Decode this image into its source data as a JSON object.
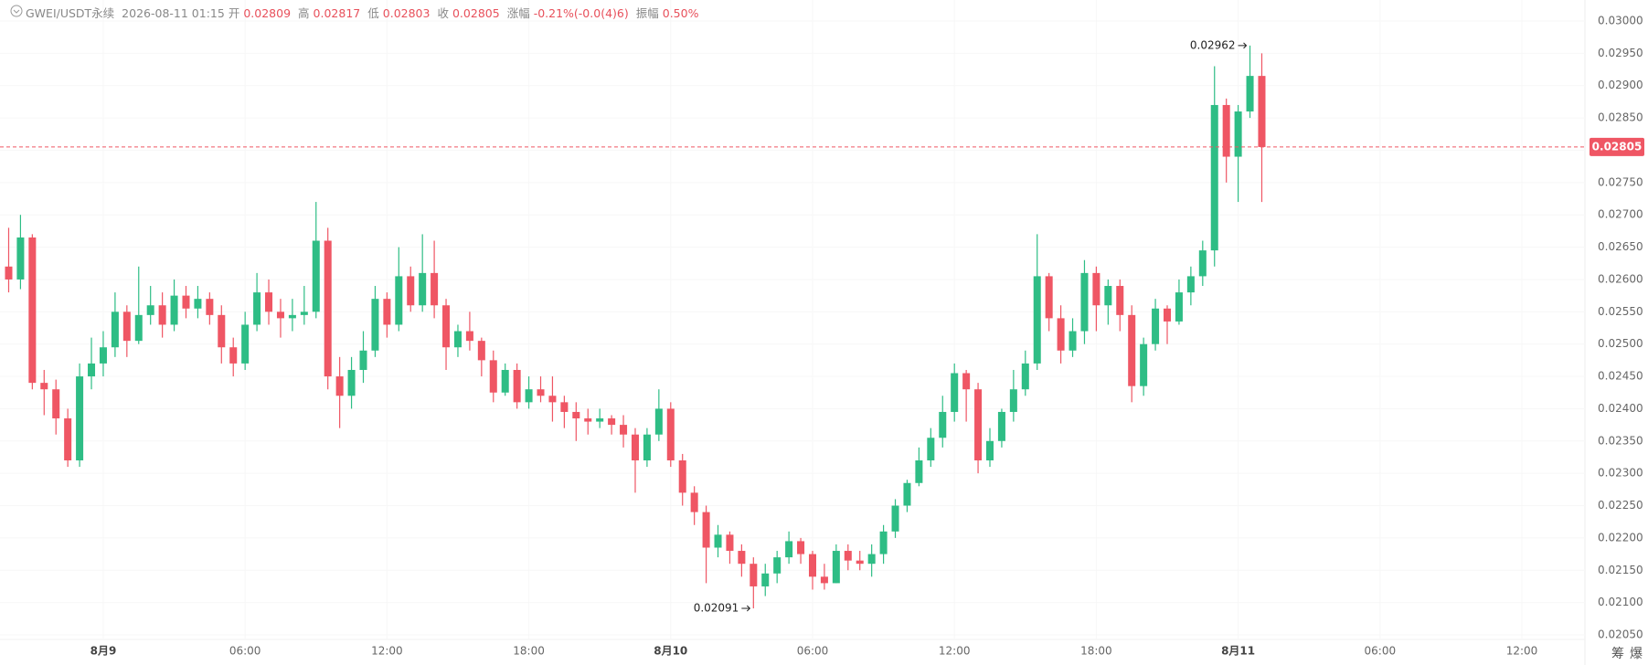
{
  "chart_data": {
    "type": "candlestick",
    "title": "GWEI/USDT永续",
    "info": [
      {
        "label": "2026-08-11 01:15"
      },
      {
        "label": "开",
        "value": "0.02809"
      },
      {
        "label": "高",
        "value": "0.02817"
      },
      {
        "label": "低",
        "value": "0.02803"
      },
      {
        "label": "收",
        "value": "0.02805"
      },
      {
        "label": "涨幅",
        "value": "-0.21%(-0.0(4)6)"
      },
      {
        "label": "振幅",
        "value": "0.50%"
      }
    ],
    "tools": [
      "筹",
      "爆"
    ],
    "up_color": "#2ebd85",
    "down_color": "#ef5664",
    "grid": true,
    "x": [
      "8月8 20:00",
      "8月8 20:30",
      "8月8 21:00",
      "8月8 21:30",
      "8月8 22:00",
      "8月8 22:30",
      "8月8 23:00",
      "8月8 23:30",
      "8月9 00:00",
      "8月9 00:30",
      "8月9 01:00",
      "8月9 01:30",
      "8月9 02:00",
      "8月9 02:30",
      "8月9 03:00",
      "8月9 03:30",
      "8月9 04:00",
      "8月9 04:30",
      "8月9 05:00",
      "8月9 05:30",
      "8月9 06:00",
      "8月9 06:30",
      "8月9 07:00",
      "8月9 07:30",
      "8月9 08:00",
      "8月9 08:30",
      "8月9 09:00",
      "8月9 09:30",
      "8月9 10:00",
      "8月9 10:30",
      "8月9 11:00",
      "8月9 11:30",
      "8月9 12:00",
      "8月9 12:30",
      "8月9 13:00",
      "8月9 13:30",
      "8月9 14:00",
      "8月9 14:30",
      "8月9 15:00",
      "8月9 15:30",
      "8月9 16:00",
      "8月9 16:30",
      "8月9 17:00",
      "8月9 17:30",
      "8月9 18:00",
      "8月9 18:30",
      "8月9 19:00",
      "8月9 19:30",
      "8月9 20:00",
      "8月9 20:30",
      "8月9 21:00",
      "8月9 21:30",
      "8月9 22:00",
      "8月9 22:30",
      "8月9 23:00",
      "8月9 23:30",
      "8月10 00:00",
      "8月10 00:30",
      "8月10 01:00",
      "8月10 01:30",
      "8月10 02:00",
      "8月10 02:30",
      "8月10 03:00",
      "8月10 03:30",
      "8月10 04:00",
      "8月10 04:30",
      "8月10 05:00",
      "8月10 05:30",
      "8月10 06:00",
      "8月10 06:30",
      "8月10 07:00",
      "8月10 07:30",
      "8月10 08:00",
      "8月10 08:30",
      "8月10 09:00",
      "8月10 09:30",
      "8月10 10:00",
      "8月10 10:30",
      "8月10 11:00",
      "8月10 11:30",
      "8月10 12:00",
      "8月10 12:30",
      "8月10 13:00",
      "8月10 13:30",
      "8月10 14:00",
      "8月10 14:30",
      "8月10 15:00",
      "8月10 15:30",
      "8月10 16:00",
      "8月10 16:30",
      "8月10 17:00",
      "8月10 17:30",
      "8月10 18:00",
      "8月10 18:30",
      "8月10 19:00",
      "8月10 19:30",
      "8月10 20:00",
      "8月10 20:30",
      "8月10 21:00",
      "8月10 21:30",
      "8月10 22:00",
      "8月10 22:30",
      "8月10 23:00",
      "8月10 23:30",
      "8月11 00:00",
      "8月11 00:30",
      "8月11 01:00"
    ],
    "candles": [
      [
        0.0262,
        0.0268,
        0.0258,
        0.026
      ],
      [
        0.026,
        0.027,
        0.02585,
        0.02665
      ],
      [
        0.02665,
        0.0267,
        0.0243,
        0.0244
      ],
      [
        0.0244,
        0.0246,
        0.0239,
        0.0243
      ],
      [
        0.0243,
        0.02445,
        0.0236,
        0.02385
      ],
      [
        0.02385,
        0.024,
        0.0231,
        0.0232
      ],
      [
        0.0232,
        0.0247,
        0.0231,
        0.0245
      ],
      [
        0.0245,
        0.0251,
        0.0243,
        0.0247
      ],
      [
        0.0247,
        0.0252,
        0.0245,
        0.02495
      ],
      [
        0.02495,
        0.0258,
        0.0248,
        0.0255
      ],
      [
        0.0255,
        0.0256,
        0.0248,
        0.02505
      ],
      [
        0.02505,
        0.0262,
        0.025,
        0.02545
      ],
      [
        0.02545,
        0.0259,
        0.0253,
        0.0256
      ],
      [
        0.0256,
        0.0258,
        0.0251,
        0.0253
      ],
      [
        0.0253,
        0.026,
        0.0252,
        0.02575
      ],
      [
        0.02575,
        0.0259,
        0.0254,
        0.02555
      ],
      [
        0.02555,
        0.0259,
        0.0254,
        0.0257
      ],
      [
        0.0257,
        0.0258,
        0.0253,
        0.02545
      ],
      [
        0.02545,
        0.0256,
        0.0247,
        0.02495
      ],
      [
        0.02495,
        0.0251,
        0.0245,
        0.0247
      ],
      [
        0.0247,
        0.0255,
        0.0246,
        0.0253
      ],
      [
        0.0253,
        0.0261,
        0.0252,
        0.0258
      ],
      [
        0.0258,
        0.026,
        0.0253,
        0.0255
      ],
      [
        0.0255,
        0.0257,
        0.0251,
        0.0254
      ],
      [
        0.0254,
        0.0257,
        0.0252,
        0.02545
      ],
      [
        0.02545,
        0.0259,
        0.0253,
        0.0255
      ],
      [
        0.0255,
        0.0272,
        0.0254,
        0.0266
      ],
      [
        0.0266,
        0.0268,
        0.0243,
        0.0245
      ],
      [
        0.0245,
        0.0248,
        0.0237,
        0.0242
      ],
      [
        0.0242,
        0.0248,
        0.024,
        0.0246
      ],
      [
        0.0246,
        0.0252,
        0.0244,
        0.0249
      ],
      [
        0.0249,
        0.0259,
        0.0248,
        0.0257
      ],
      [
        0.0257,
        0.0258,
        0.0251,
        0.0253
      ],
      [
        0.0253,
        0.0265,
        0.0252,
        0.02605
      ],
      [
        0.02605,
        0.0262,
        0.0255,
        0.0256
      ],
      [
        0.0256,
        0.0267,
        0.0255,
        0.0261
      ],
      [
        0.0261,
        0.0266,
        0.0254,
        0.0256
      ],
      [
        0.0256,
        0.0257,
        0.0246,
        0.02495
      ],
      [
        0.02495,
        0.0253,
        0.0248,
        0.0252
      ],
      [
        0.0252,
        0.0255,
        0.0249,
        0.02505
      ],
      [
        0.02505,
        0.0251,
        0.0245,
        0.02475
      ],
      [
        0.02475,
        0.0249,
        0.0241,
        0.02425
      ],
      [
        0.02425,
        0.0247,
        0.0242,
        0.0246
      ],
      [
        0.0246,
        0.0247,
        0.024,
        0.0241
      ],
      [
        0.0241,
        0.0245,
        0.024,
        0.0243
      ],
      [
        0.0243,
        0.0245,
        0.0241,
        0.0242
      ],
      [
        0.0242,
        0.0245,
        0.0238,
        0.0241
      ],
      [
        0.0241,
        0.0242,
        0.0237,
        0.02395
      ],
      [
        0.02395,
        0.0241,
        0.0235,
        0.02385
      ],
      [
        0.02385,
        0.024,
        0.0236,
        0.0238
      ],
      [
        0.0238,
        0.024,
        0.0237,
        0.02385
      ],
      [
        0.02385,
        0.0239,
        0.0236,
        0.02375
      ],
      [
        0.02375,
        0.0239,
        0.0234,
        0.0236
      ],
      [
        0.0236,
        0.0237,
        0.0227,
        0.0232
      ],
      [
        0.0232,
        0.0237,
        0.0231,
        0.0236
      ],
      [
        0.0236,
        0.0243,
        0.0235,
        0.024
      ],
      [
        0.024,
        0.0241,
        0.0231,
        0.0232
      ],
      [
        0.0232,
        0.0233,
        0.0225,
        0.0227
      ],
      [
        0.0227,
        0.0228,
        0.0222,
        0.0224
      ],
      [
        0.0224,
        0.0225,
        0.0213,
        0.02185
      ],
      [
        0.02185,
        0.0222,
        0.0217,
        0.02205
      ],
      [
        0.02205,
        0.0221,
        0.0216,
        0.0218
      ],
      [
        0.0218,
        0.0219,
        0.0214,
        0.0216
      ],
      [
        0.0216,
        0.0217,
        0.02091,
        0.02125
      ],
      [
        0.02125,
        0.0216,
        0.0211,
        0.02145
      ],
      [
        0.02145,
        0.0218,
        0.0213,
        0.0217
      ],
      [
        0.0217,
        0.0221,
        0.0216,
        0.02195
      ],
      [
        0.02195,
        0.022,
        0.0216,
        0.02175
      ],
      [
        0.02175,
        0.0218,
        0.0212,
        0.0214
      ],
      [
        0.0214,
        0.0216,
        0.0212,
        0.0213
      ],
      [
        0.0213,
        0.0219,
        0.0213,
        0.0218
      ],
      [
        0.0218,
        0.0219,
        0.0215,
        0.02165
      ],
      [
        0.02165,
        0.0218,
        0.0215,
        0.0216
      ],
      [
        0.0216,
        0.0219,
        0.0214,
        0.02175
      ],
      [
        0.02175,
        0.0222,
        0.0216,
        0.0221
      ],
      [
        0.0221,
        0.0226,
        0.022,
        0.0225
      ],
      [
        0.0225,
        0.0229,
        0.0224,
        0.02285
      ],
      [
        0.02285,
        0.0234,
        0.0228,
        0.0232
      ],
      [
        0.0232,
        0.0237,
        0.0231,
        0.02355
      ],
      [
        0.02355,
        0.0242,
        0.0234,
        0.02395
      ],
      [
        0.02395,
        0.0247,
        0.0238,
        0.02455
      ],
      [
        0.02455,
        0.0246,
        0.0238,
        0.0243
      ],
      [
        0.0243,
        0.0244,
        0.023,
        0.0232
      ],
      [
        0.0232,
        0.0237,
        0.0231,
        0.0235
      ],
      [
        0.0235,
        0.024,
        0.0234,
        0.02395
      ],
      [
        0.02395,
        0.0246,
        0.0238,
        0.0243
      ],
      [
        0.0243,
        0.0249,
        0.0242,
        0.0247
      ],
      [
        0.0247,
        0.0267,
        0.0246,
        0.02605
      ],
      [
        0.02605,
        0.0261,
        0.0252,
        0.0254
      ],
      [
        0.0254,
        0.0256,
        0.0247,
        0.0249
      ],
      [
        0.0249,
        0.0254,
        0.0248,
        0.0252
      ],
      [
        0.0252,
        0.0263,
        0.025,
        0.0261
      ],
      [
        0.0261,
        0.0262,
        0.0252,
        0.0256
      ],
      [
        0.0256,
        0.026,
        0.0253,
        0.0259
      ],
      [
        0.0259,
        0.026,
        0.0252,
        0.02545
      ],
      [
        0.02545,
        0.0256,
        0.0241,
        0.02435
      ],
      [
        0.02435,
        0.0251,
        0.0242,
        0.025
      ],
      [
        0.025,
        0.0257,
        0.0249,
        0.02555
      ],
      [
        0.02555,
        0.0256,
        0.025,
        0.02535
      ],
      [
        0.02535,
        0.026,
        0.0253,
        0.0258
      ],
      [
        0.0258,
        0.0262,
        0.0256,
        0.02605
      ],
      [
        0.02605,
        0.0266,
        0.0259,
        0.02645
      ],
      [
        0.02645,
        0.0293,
        0.0262,
        0.0287
      ],
      [
        0.0287,
        0.0288,
        0.0275,
        0.0279
      ],
      [
        0.0279,
        0.0287,
        0.0272,
        0.0286
      ],
      [
        0.0286,
        0.02962,
        0.0285,
        0.02915
      ],
      [
        0.02915,
        0.0295,
        0.0272,
        0.02805
      ]
    ],
    "xlim": [
      "8月8 19:38",
      "8月11 14:40"
    ],
    "xticks": [
      {
        "value": "8月9 00:00",
        "label": "8月9"
      },
      {
        "value": "8月9 06:00",
        "label": "06:00"
      },
      {
        "value": "8月9 12:00",
        "label": "12:00"
      },
      {
        "value": "8月9 18:00",
        "label": "18:00"
      },
      {
        "value": "8月10 00:00",
        "label": "8月10"
      },
      {
        "value": "8月10 06:00",
        "label": "06:00"
      },
      {
        "value": "8月10 12:00",
        "label": "12:00"
      },
      {
        "value": "8月10 18:00",
        "label": "18:00"
      },
      {
        "value": "8月11 00:00",
        "label": "8月11"
      },
      {
        "value": "8月11 06:00",
        "label": "06:00"
      },
      {
        "value": "8月11 12:00",
        "label": "12:00"
      }
    ],
    "ylim": [
      0.0205,
      0.03
    ],
    "yticks": [
      {
        "value": 0.03,
        "label": "0.03000"
      },
      {
        "value": 0.0295,
        "label": "0.02950"
      },
      {
        "value": 0.029,
        "label": "0.02900"
      },
      {
        "value": 0.0285,
        "label": "0.02850"
      },
      {
        "value": 0.028,
        "label": "0.02800"
      },
      {
        "value": 0.0275,
        "label": "0.02750"
      },
      {
        "value": 0.027,
        "label": "0.02700"
      },
      {
        "value": 0.0265,
        "label": "0.02650"
      },
      {
        "value": 0.026,
        "label": "0.02600"
      },
      {
        "value": 0.0255,
        "label": "0.02550"
      },
      {
        "value": 0.025,
        "label": "0.02500"
      },
      {
        "value": 0.0245,
        "label": "0.02450"
      },
      {
        "value": 0.024,
        "label": "0.02400"
      },
      {
        "value": 0.0235,
        "label": "0.02350"
      },
      {
        "value": 0.023,
        "label": "0.02300"
      },
      {
        "value": 0.0225,
        "label": "0.02250"
      },
      {
        "value": 0.022,
        "label": "0.02200"
      },
      {
        "value": 0.0215,
        "label": "0.02150"
      },
      {
        "value": 0.021,
        "label": "0.02100"
      },
      {
        "value": 0.0205,
        "label": "0.02050"
      }
    ]
  }
}
